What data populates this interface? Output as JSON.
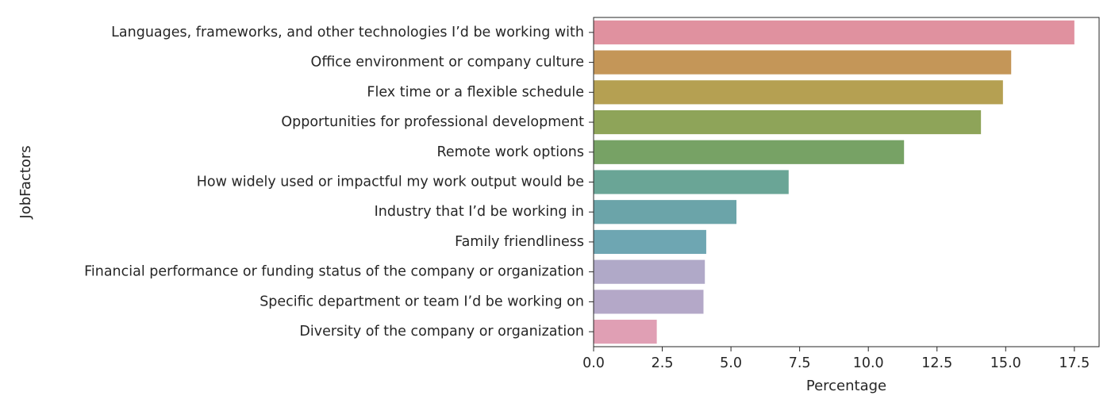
{
  "chart_data": {
    "type": "bar",
    "orientation": "horizontal",
    "title": "",
    "xlabel": "Percentage",
    "ylabel": "JobFactors",
    "xlim": [
      0,
      18.4
    ],
    "xticks": [
      "0.0",
      "2.5",
      "5.0",
      "7.5",
      "10.0",
      "12.5",
      "15.0",
      "17.5"
    ],
    "grid": false,
    "categories": [
      "Languages, frameworks, and other technologies I’d be working with",
      "Office environment or company culture",
      "Flex time or a flexible schedule",
      "Opportunities for professional development",
      "Remote work options",
      "How widely used or impactful my work output would be",
      "Industry that I’d be working in",
      "Family friendliness",
      "Financial performance or funding status of the company or organization",
      "Specific department or team I’d be working on",
      "Diversity of the company or organization"
    ],
    "values": [
      17.5,
      15.2,
      14.9,
      14.1,
      11.3,
      7.1,
      5.2,
      4.1,
      4.05,
      4.0,
      2.3
    ],
    "colors": [
      "#e0919f",
      "#c49658",
      "#b5a052",
      "#8ea459",
      "#77a265",
      "#6aa596",
      "#6ba4a9",
      "#6ea6b2",
      "#b0a9c8",
      "#b4a8c8",
      "#e09fb4"
    ]
  }
}
